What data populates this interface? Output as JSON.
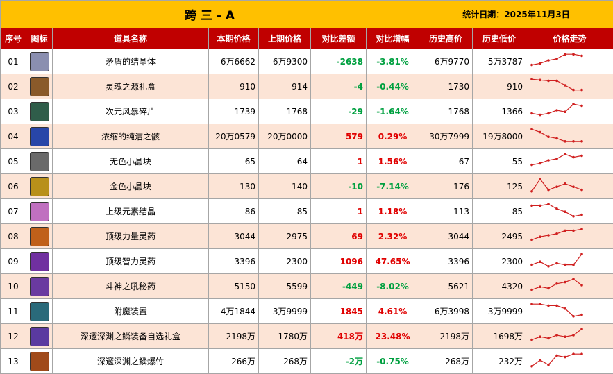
{
  "header": {
    "title": "跨 三 - A",
    "date": "统计日期：2025年11月3日"
  },
  "table": {
    "columns": [
      "序号",
      "图标",
      "道具名称",
      "本期价格",
      "上期价格",
      "对比差额",
      "对比增幅",
      "历史高价",
      "历史低价",
      "价格走势"
    ],
    "rows": [
      {
        "no": "01",
        "name": "矛盾的结晶体",
        "current": "6万6662",
        "previous": "6万9300",
        "diff": "-2638",
        "change": "-3.81%",
        "high": "6万9770",
        "low": "5万3787",
        "trend": [
          2,
          3,
          5,
          6,
          9,
          9,
          8
        ]
      },
      {
        "no": "02",
        "name": "灵魂之源礼盒",
        "current": "910",
        "previous": "914",
        "diff": "-4",
        "change": "-0.44%",
        "high": "1730",
        "low": "910",
        "trend": [
          9,
          8.5,
          8,
          8,
          5,
          2,
          2
        ]
      },
      {
        "no": "03",
        "name": "次元风暴碎片",
        "current": "1739",
        "previous": "1768",
        "diff": "-29",
        "change": "-1.64%",
        "high": "1768",
        "low": "1366",
        "trend": [
          3,
          2,
          3,
          5,
          4,
          9,
          8
        ]
      },
      {
        "no": "04",
        "name": "浓缩的纯洁之骸",
        "current": "20万0579",
        "previous": "20万0000",
        "diff": "579",
        "change": "0.29%",
        "high": "30万7999",
        "low": "19万8000",
        "trend": [
          9,
          7,
          4,
          3,
          1,
          1,
          1
        ]
      },
      {
        "no": "05",
        "name": "无色小晶块",
        "current": "65",
        "previous": "64",
        "diff": "1",
        "change": "1.56%",
        "high": "67",
        "low": "55",
        "trend": [
          2,
          3,
          5,
          6,
          9,
          7,
          8
        ]
      },
      {
        "no": "06",
        "name": "金色小晶块",
        "current": "130",
        "previous": "140",
        "diff": "-10",
        "change": "-7.14%",
        "high": "176",
        "low": "125",
        "trend": [
          1,
          9,
          2,
          4,
          6,
          4,
          2
        ]
      },
      {
        "no": "07",
        "name": "上级元素结晶",
        "current": "86",
        "previous": "85",
        "diff": "1",
        "change": "1.18%",
        "high": "113",
        "low": "85",
        "trend": [
          8,
          8,
          9,
          6,
          4,
          1,
          2
        ]
      },
      {
        "no": "08",
        "name": "顶级力量灵药",
        "current": "3044",
        "previous": "2975",
        "diff": "69",
        "change": "2.32%",
        "high": "3044",
        "low": "2495",
        "trend": [
          2,
          4,
          5,
          6,
          8,
          8,
          9
        ]
      },
      {
        "no": "09",
        "name": "顶级智力灵药",
        "current": "3396",
        "previous": "2300",
        "diff": "1096",
        "change": "47.65%",
        "high": "3396",
        "low": "2300",
        "trend": [
          2,
          4,
          1,
          3,
          2,
          2,
          9
        ]
      },
      {
        "no": "10",
        "name": "斗神之吼秘药",
        "current": "5150",
        "previous": "5599",
        "diff": "-449",
        "change": "-8.02%",
        "high": "5621",
        "low": "4320",
        "trend": [
          2,
          4,
          3,
          6,
          7,
          9,
          5
        ]
      },
      {
        "no": "11",
        "name": "附魔装置",
        "current": "4万1844",
        "previous": "3万9999",
        "diff": "1845",
        "change": "4.61%",
        "high": "6万3998",
        "low": "3万9999",
        "trend": [
          9,
          9,
          8,
          8,
          6,
          1,
          2
        ]
      },
      {
        "no": "12",
        "name": "深邃深渊之鳞装备自选礼盒",
        "current": "2198万",
        "previous": "1780万",
        "diff": "418万",
        "change": "23.48%",
        "high": "2198万",
        "low": "1698万",
        "trend": [
          2,
          4,
          3,
          5,
          4,
          5,
          9
        ]
      },
      {
        "no": "13",
        "name": "深邃深渊之鳞爆竹",
        "current": "266万",
        "previous": "268万",
        "diff": "-2万",
        "change": "-0.75%",
        "high": "268万",
        "low": "232万",
        "trend": [
          1,
          5,
          2,
          8,
          7,
          9,
          9
        ]
      }
    ]
  }
}
